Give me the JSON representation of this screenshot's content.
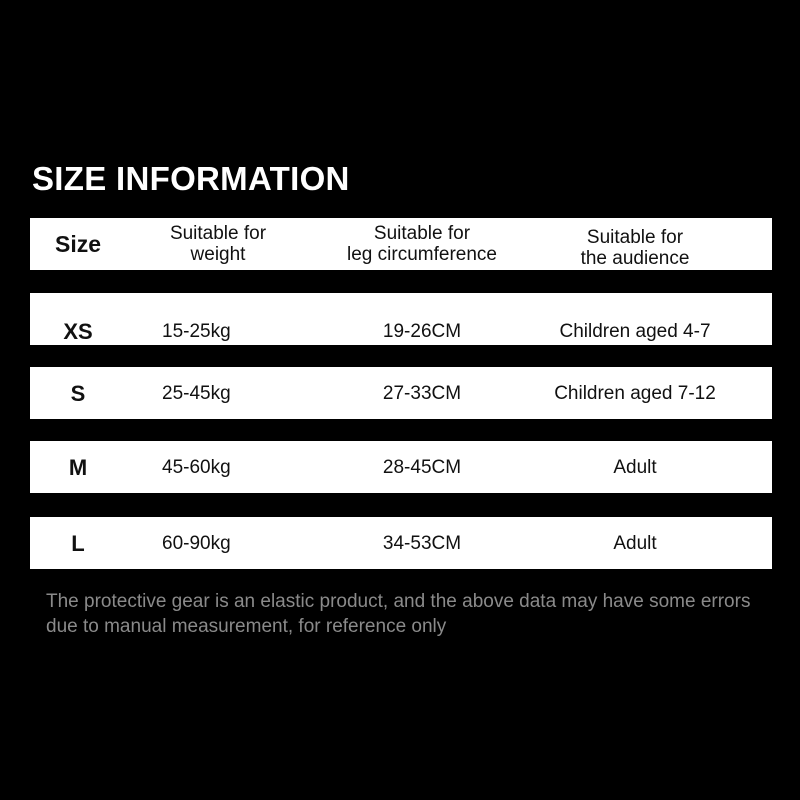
{
  "title": "SIZE INFORMATION",
  "headers": [
    "Size",
    "Suitable for\nweight",
    "Suitable for\nleg circumference",
    "Suitable for\nthe audience"
  ],
  "rows": [
    [
      "XS",
      "15-25kg",
      "19-26CM",
      "Children aged 4-7"
    ],
    [
      "S",
      "25-45kg",
      "27-33CM",
      "Children aged 7-12"
    ],
    [
      "M",
      "45-60kg",
      "28-45CM",
      "Adult"
    ],
    [
      "L",
      "60-90kg",
      "34-53CM",
      "Adult"
    ]
  ],
  "note": "The protective gear is an elastic product, and the above data may have some errors due to manual measurement, for reference only"
}
